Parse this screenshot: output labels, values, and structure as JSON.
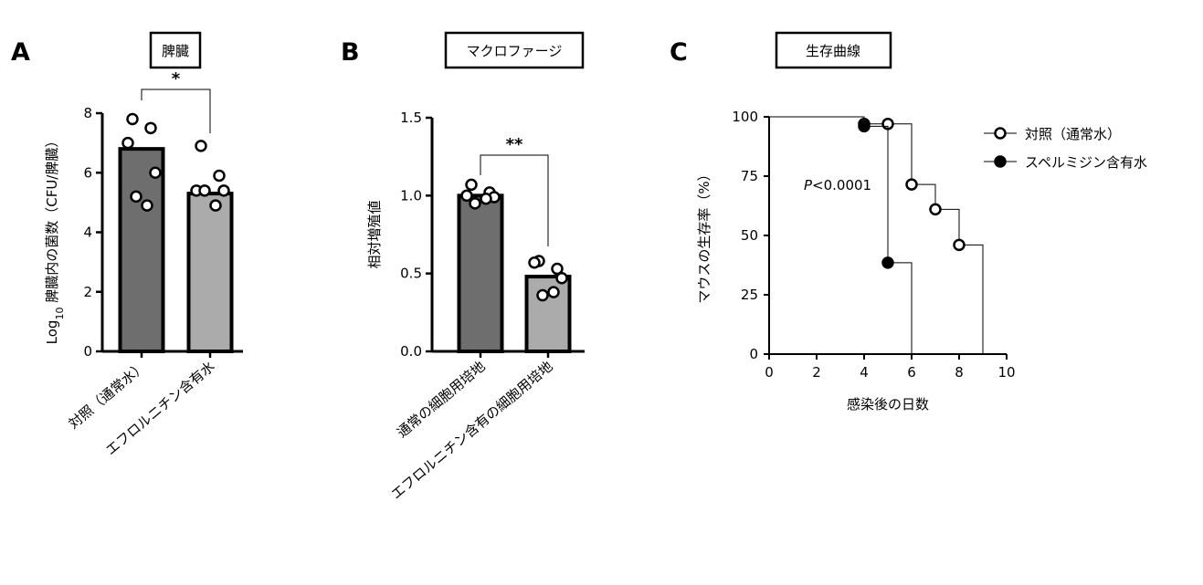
{
  "panels": [
    {
      "letter": "A",
      "title": "脾臓"
    },
    {
      "letter": "B",
      "title": "マクロファージ"
    },
    {
      "letter": "C",
      "title": "生存曲線"
    }
  ],
  "chart_data": [
    {
      "type": "bar",
      "panel": "A",
      "title": "脾臓",
      "ylabel_prefix": "Log",
      "ylabel_sub": "10",
      "ylabel_rest": " 脾臓内の菌数（CFU/脾臓）",
      "ylim": [
        0,
        8
      ],
      "yticks": [
        0,
        2,
        4,
        6,
        8
      ],
      "categories": [
        "対照（通常水）",
        "エフロルニチン含有水"
      ],
      "values": [
        6.8,
        5.3
      ],
      "points": [
        [
          7.8,
          7.5,
          7.0,
          6.0,
          5.2,
          4.9
        ],
        [
          6.9,
          5.9,
          5.4,
          5.4,
          5.4,
          4.9
        ]
      ],
      "significance": "*",
      "bar_colors": [
        "#6e6e6e",
        "#ababab"
      ]
    },
    {
      "type": "bar",
      "panel": "B",
      "title": "マクロファージ",
      "ylabel": "相対増殖値",
      "ylim": [
        0,
        1.5
      ],
      "yticks": [
        "0.0",
        "0.5",
        "1.0",
        "1.5"
      ],
      "categories": [
        "通常の細胞用培地",
        "エフロルニチン含有の細胞用培地"
      ],
      "values": [
        1.0,
        0.48
      ],
      "points": [
        [
          1.07,
          1.02,
          1.0,
          0.99,
          0.95,
          0.98
        ],
        [
          0.58,
          0.53,
          0.57,
          0.47,
          0.36,
          0.38
        ]
      ],
      "significance": "**",
      "bar_colors": [
        "#6e6e6e",
        "#ababab"
      ]
    },
    {
      "type": "line",
      "panel": "C",
      "title": "生存曲線",
      "xlabel": "感染後の日数",
      "ylabel": "マウスの生存率（%）",
      "xlim": [
        0,
        10
      ],
      "ylim": [
        0,
        100
      ],
      "xticks": [
        0,
        2,
        4,
        6,
        8,
        10
      ],
      "yticks": [
        0,
        25,
        50,
        75,
        100
      ],
      "annotation_p": "P",
      "annotation_rest": "<0.0001",
      "legend_position": "top-right",
      "series": [
        {
          "name": "対照（通常水）",
          "marker": "open-circle",
          "steps": [
            [
              0,
              100
            ],
            [
              4,
              100
            ],
            [
              4,
              97
            ],
            [
              6,
              97
            ],
            [
              6,
              71.5
            ],
            [
              7,
              71.5
            ],
            [
              7,
              61
            ],
            [
              8,
              61
            ],
            [
              8,
              46
            ],
            [
              9,
              46
            ],
            [
              9,
              0
            ]
          ],
          "points": [
            [
              4,
              97
            ],
            [
              5,
              97
            ],
            [
              6,
              71.5
            ],
            [
              7,
              61
            ],
            [
              8,
              46
            ]
          ]
        },
        {
          "name": "スペルミジン含有水",
          "marker": "filled-circle",
          "steps": [
            [
              0,
              100
            ],
            [
              4,
              100
            ],
            [
              4,
              96
            ],
            [
              5,
              96
            ],
            [
              5,
              38.5
            ],
            [
              6,
              38.5
            ],
            [
              6,
              0
            ]
          ],
          "points": [
            [
              4,
              96
            ],
            [
              5,
              38.5
            ]
          ]
        }
      ]
    }
  ]
}
